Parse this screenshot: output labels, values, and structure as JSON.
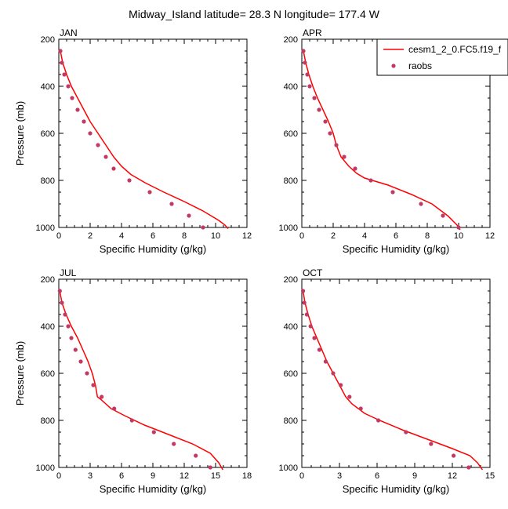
{
  "title": "Midway_Island  latitude= 28.3 N longitude= 177.4 W",
  "colors": {
    "model": "#ff0000",
    "obs": "#c23a64",
    "axis": "#000000"
  },
  "legend": {
    "model_label": "cesm1_2_0.FC5.f19_f",
    "obs_label": "raobs",
    "placement": "top-right"
  },
  "chart_data": [
    {
      "type": "line",
      "panel": "JAN",
      "title": "JAN",
      "xlabel": "Specific Humidity (g/kg)",
      "ylabel": "Pressure (mb)",
      "xlim": [
        0,
        12
      ],
      "ylim": [
        1000,
        200
      ],
      "xticks": [
        0,
        2,
        4,
        6,
        8,
        10,
        12
      ],
      "yticks": [
        200,
        400,
        600,
        800,
        1000
      ],
      "series": [
        {
          "name": "cesm1_2_0.FC5.f19_f",
          "kind": "line",
          "x": [
            0.1,
            0.25,
            0.5,
            0.8,
            1.2,
            1.6,
            2.0,
            2.5,
            3.0,
            3.5,
            4.0,
            4.6,
            5.5,
            6.7,
            8.0,
            9.2,
            10.2,
            10.6,
            10.8
          ],
          "y": [
            250,
            300,
            350,
            400,
            450,
            500,
            550,
            600,
            650,
            700,
            740,
            775,
            810,
            850,
            890,
            930,
            970,
            990,
            1005
          ]
        },
        {
          "name": "raobs",
          "kind": "scatter",
          "x": [
            0.1,
            0.2,
            0.35,
            0.6,
            0.85,
            1.2,
            1.6,
            2.0,
            2.5,
            3.0,
            3.5,
            4.5,
            5.8,
            7.2,
            8.3,
            9.2
          ],
          "y": [
            250,
            300,
            350,
            400,
            450,
            500,
            550,
            600,
            650,
            700,
            750,
            800,
            850,
            900,
            950,
            1000
          ]
        }
      ]
    },
    {
      "type": "line",
      "panel": "APR",
      "title": "APR",
      "xlabel": "Specific Humidity (g/kg)",
      "ylabel": "",
      "xlim": [
        0,
        12
      ],
      "ylim": [
        1000,
        200
      ],
      "xticks": [
        0,
        2,
        4,
        6,
        8,
        10,
        12
      ],
      "yticks": [
        200,
        400,
        600,
        800,
        1000
      ],
      "series": [
        {
          "name": "cesm1_2_0.FC5.f19_f",
          "kind": "line",
          "x": [
            0.1,
            0.25,
            0.45,
            0.7,
            1.0,
            1.35,
            1.7,
            2.0,
            2.2,
            2.5,
            3.0,
            3.5,
            4.0,
            5.5,
            7.0,
            8.3,
            9.3,
            9.9,
            10.1
          ],
          "y": [
            250,
            300,
            350,
            400,
            450,
            500,
            550,
            600,
            650,
            700,
            740,
            770,
            790,
            820,
            860,
            900,
            950,
            990,
            1010
          ]
        },
        {
          "name": "raobs",
          "kind": "scatter",
          "x": [
            0.1,
            0.2,
            0.35,
            0.5,
            0.8,
            1.1,
            1.5,
            1.8,
            2.2,
            2.7,
            3.4,
            4.4,
            5.8,
            7.6,
            9.0,
            10.0
          ],
          "y": [
            250,
            300,
            350,
            400,
            450,
            500,
            550,
            600,
            650,
            700,
            750,
            800,
            850,
            900,
            950,
            1000
          ]
        }
      ]
    },
    {
      "type": "line",
      "panel": "JUL",
      "title": "JUL",
      "xlabel": "Specific Humidity (g/kg)",
      "ylabel": "Pressure (mb)",
      "xlim": [
        0,
        18
      ],
      "ylim": [
        1000,
        200
      ],
      "xticks": [
        0,
        3,
        6,
        9,
        12,
        15,
        18
      ],
      "yticks": [
        200,
        400,
        600,
        800,
        1000
      ],
      "series": [
        {
          "name": "cesm1_2_0.FC5.f19_f",
          "kind": "line",
          "x": [
            0.1,
            0.3,
            0.7,
            1.2,
            1.8,
            2.3,
            2.8,
            3.2,
            3.5,
            3.7,
            4.0,
            5.0,
            6.3,
            8.2,
            10.5,
            12.8,
            14.5,
            15.3,
            15.7
          ],
          "y": [
            250,
            300,
            350,
            400,
            450,
            500,
            550,
            600,
            650,
            700,
            710,
            750,
            780,
            820,
            860,
            900,
            940,
            980,
            1010
          ]
        },
        {
          "name": "raobs",
          "kind": "scatter",
          "x": [
            0.1,
            0.3,
            0.6,
            0.9,
            1.2,
            1.6,
            2.1,
            2.7,
            3.3,
            4.1,
            5.3,
            7.0,
            9.1,
            11.0,
            13.1,
            14.5
          ],
          "y": [
            250,
            300,
            350,
            400,
            450,
            500,
            550,
            600,
            650,
            700,
            750,
            800,
            850,
            900,
            950,
            1000
          ]
        }
      ]
    },
    {
      "type": "line",
      "panel": "OCT",
      "title": "OCT",
      "xlabel": "Specific Humidity (g/kg)",
      "ylabel": "",
      "xlim": [
        0,
        15
      ],
      "ylim": [
        1000,
        200
      ],
      "xticks": [
        0,
        3,
        6,
        9,
        12,
        15
      ],
      "yticks": [
        200,
        400,
        600,
        800,
        1000
      ],
      "series": [
        {
          "name": "cesm1_2_0.FC5.f19_f",
          "kind": "line",
          "x": [
            0.1,
            0.25,
            0.5,
            0.8,
            1.2,
            1.6,
            2.0,
            2.5,
            3.0,
            3.5,
            4.0,
            5.0,
            6.2,
            8.0,
            10.0,
            12.0,
            13.4,
            14.0,
            14.4
          ],
          "y": [
            250,
            300,
            350,
            400,
            450,
            500,
            550,
            600,
            650,
            700,
            730,
            770,
            800,
            840,
            880,
            920,
            950,
            980,
            1010
          ]
        },
        {
          "name": "raobs",
          "kind": "scatter",
          "x": [
            0.1,
            0.2,
            0.4,
            0.7,
            1.0,
            1.4,
            1.9,
            2.5,
            3.1,
            3.8,
            4.7,
            6.1,
            8.3,
            10.3,
            12.1,
            13.3
          ],
          "y": [
            250,
            300,
            350,
            400,
            450,
            500,
            550,
            600,
            650,
            700,
            750,
            800,
            850,
            900,
            950,
            1000
          ]
        }
      ]
    }
  ]
}
